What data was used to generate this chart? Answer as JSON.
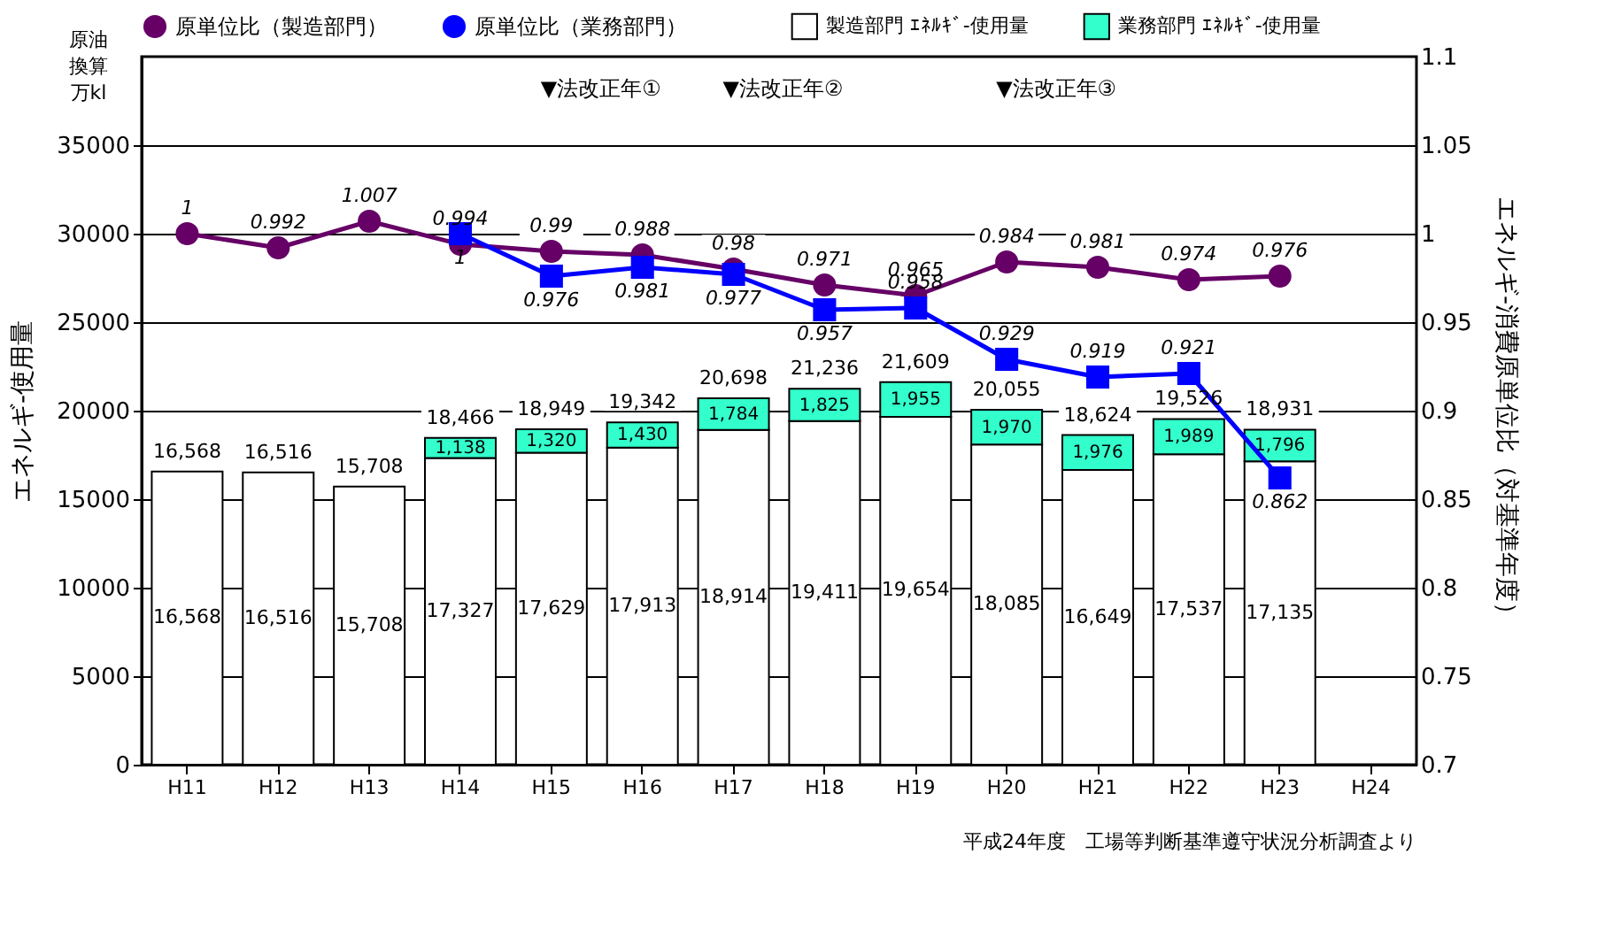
{
  "chart_data": {
    "type": "bar",
    "stacked": true,
    "categories": [
      "H11",
      "H12",
      "H13",
      "H14",
      "H15",
      "H16",
      "H17",
      "H18",
      "H19",
      "H20",
      "H21",
      "H22",
      "H23",
      "H24"
    ],
    "ylabel": "エネルギ-使用量",
    "y2label": "エネルギ-消費原単位比（対基準年度）",
    "ylim": [
      0,
      40000
    ],
    "yticks": [
      0,
      5000,
      10000,
      15000,
      20000,
      25000,
      30000,
      35000
    ],
    "y2lim": [
      0.7,
      1.1
    ],
    "y2ticks": [
      0.7,
      0.75,
      0.8,
      0.85,
      0.9,
      0.95,
      1,
      1.05,
      1.1
    ],
    "grid": "y",
    "legend": "top",
    "data_labels": true,
    "series": [
      {
        "name": "製造部門 ｴﾈﾙｷﾞ-使用量",
        "color": "#ffffff",
        "values": [
          16568,
          16516,
          15708,
          17327,
          17629,
          17913,
          18914,
          19411,
          19654,
          18085,
          16649,
          17537,
          17135,
          null
        ],
        "value_labels": [
          "16,568",
          "16,516",
          "15,708",
          "17,327",
          "17,629",
          "17,913",
          "18,914",
          "19,411",
          "19,654",
          "18,085",
          "16,649",
          "17,537",
          "17,135",
          null
        ]
      },
      {
        "name": "業務部門 ｴﾈﾙｷﾞ-使用量",
        "color": "#33ffcc",
        "values": [
          null,
          null,
          null,
          1138,
          1320,
          1430,
          1784,
          1825,
          1955,
          1970,
          1976,
          1989,
          1796,
          null
        ],
        "value_labels": [
          null,
          null,
          null,
          "1,138",
          "1,320",
          "1,430",
          "1,784",
          "1,825",
          "1,955",
          "1,970",
          "1,976",
          "1,989",
          "1,796",
          null
        ]
      },
      {
        "name": "原単位比（製造部門）",
        "type": "line",
        "axis": "y2",
        "marker": "circle",
        "color": "#660066",
        "values": [
          1,
          0.992,
          1.007,
          0.994,
          0.99,
          0.988,
          0.98,
          0.971,
          0.965,
          0.984,
          0.981,
          0.974,
          0.976,
          null
        ]
      },
      {
        "name": "原単位比（業務部門）",
        "type": "line",
        "axis": "y2",
        "marker": "square",
        "color": "#0000ff",
        "values": [
          null,
          null,
          null,
          1,
          0.976,
          0.981,
          0.977,
          0.957,
          0.958,
          0.929,
          0.919,
          0.921,
          0.862,
          null
        ]
      }
    ],
    "totals": [
      "16,568",
      "16,516",
      "15,708",
      "18,466",
      "18,949",
      "19,342",
      "20,698",
      "21,236",
      "21,609",
      "20,055",
      "18,624",
      "19,526",
      "18,931",
      null
    ],
    "annotations": [
      "原油換算万kl",
      "▼法改正年①",
      "▼法改正年②",
      "▼法改正年③",
      "平成24年度　工場等判断基準遵守状況分析調査より"
    ]
  }
}
